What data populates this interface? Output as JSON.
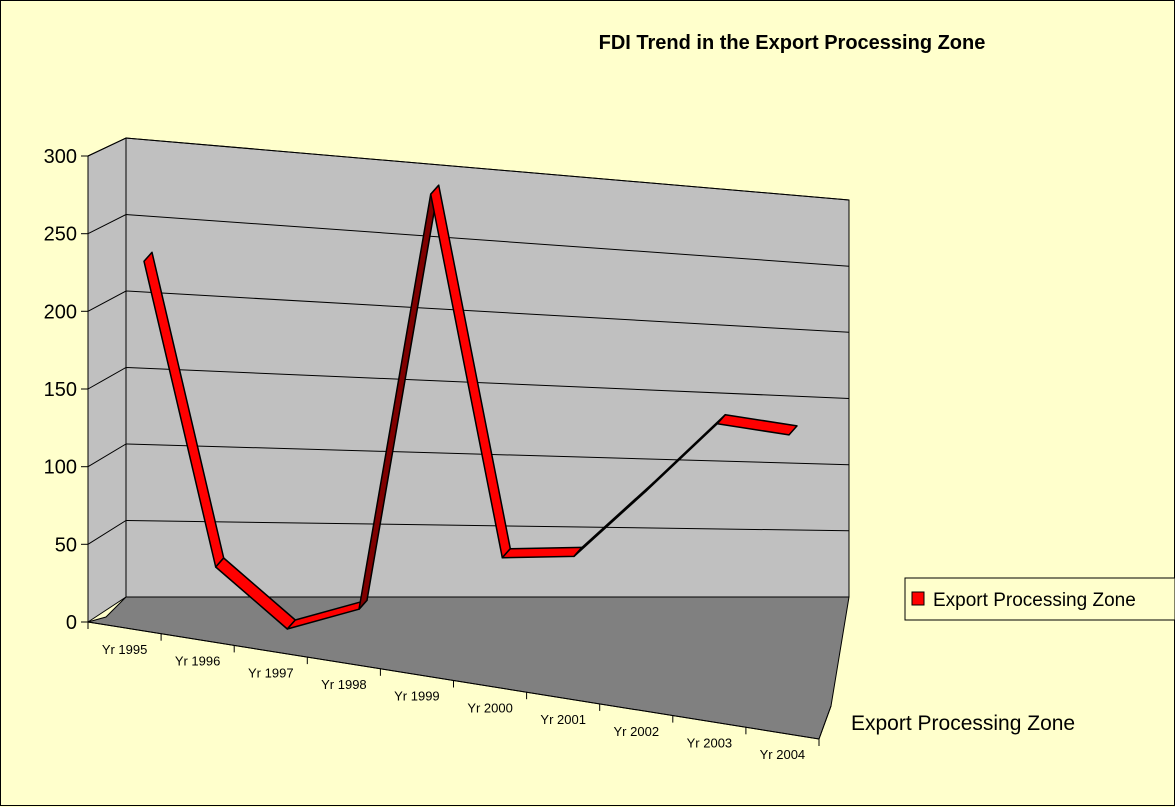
{
  "chart_data": {
    "type": "line",
    "title": "FDI Trend in the Export Processing Zone",
    "categories": [
      "Yr 1995",
      "Yr 1996",
      "Yr 1997",
      "Yr 1998",
      "Yr 1999",
      "Yr 2000",
      "Yr 2001",
      "Yr 2002",
      "Yr 2003",
      "Yr 2004"
    ],
    "series": [
      {
        "name": "Export Processing Zone",
        "values": [
          245,
          45,
          2,
          12,
          280,
          40,
          38,
          78,
          120,
          110
        ]
      }
    ],
    "depth_axis_label": "Export Processing Zone",
    "yticks": [
      "0",
      "50",
      "100",
      "150",
      "200",
      "250",
      "300"
    ],
    "ylim": [
      0,
      300
    ],
    "legend": {
      "entries": [
        "Export Processing Zone"
      ],
      "placement": "right"
    },
    "grid": true,
    "colors": {
      "series": "#ff0000",
      "series_side": "#800000",
      "wall": "#c0c0c0",
      "floor": "#808080",
      "background": "#ffffcc"
    }
  }
}
